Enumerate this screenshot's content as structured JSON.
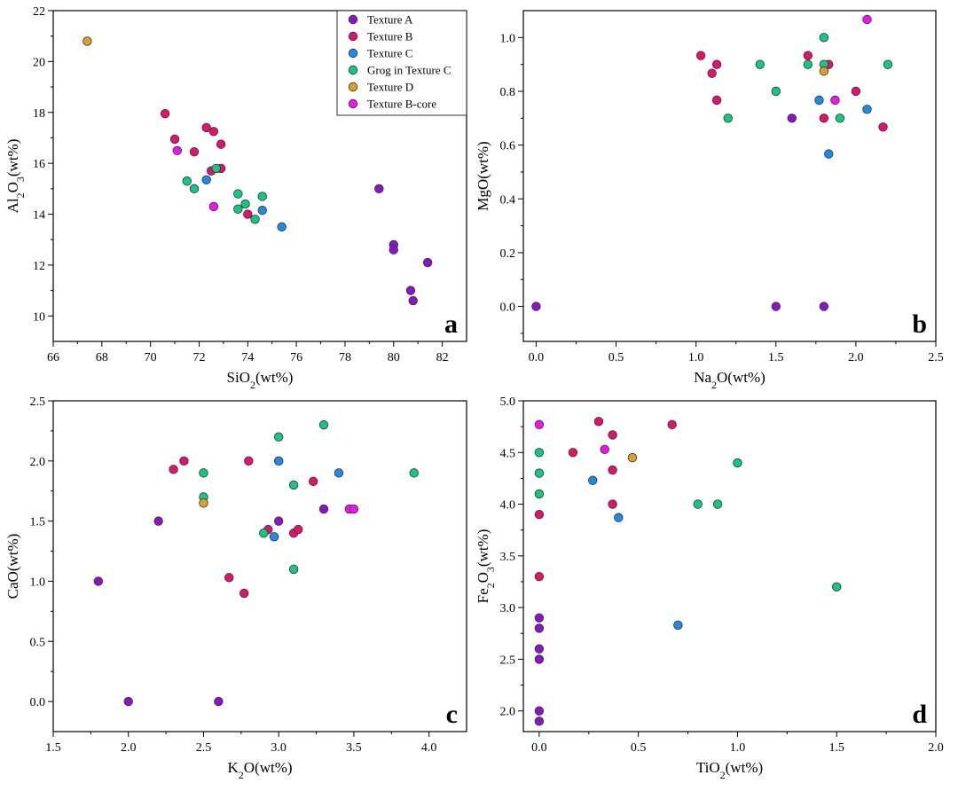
{
  "legend": [
    {
      "name": "Texture A",
      "color": "#8a14c8"
    },
    {
      "name": "Texture B",
      "color": "#e0146e"
    },
    {
      "name": "Texture C",
      "color": "#1e8ce6"
    },
    {
      "name": "Grog in Texture C",
      "color": "#14c882"
    },
    {
      "name": "Texture D",
      "color": "#dca028"
    },
    {
      "name": "Texture B-core",
      "color": "#f014f0"
    }
  ],
  "chart_data": [
    {
      "type": "scatter",
      "panel": "a",
      "xlabel_main": "SiO",
      "xlabel_sub": "2",
      "xlabel_tail": "(wt%)",
      "ylabel_main": "Al",
      "ylabel_sub": "2",
      "ylabel_mid": "O",
      "ylabel_sub2": "3",
      "ylabel_tail": "(wt%)",
      "xlim": [
        66,
        83
      ],
      "ylim": [
        9,
        22
      ],
      "xticks": [
        66,
        68,
        70,
        72,
        74,
        76,
        78,
        80,
        82
      ],
      "yticks": [
        10,
        12,
        14,
        16,
        18,
        20,
        22
      ],
      "xtick_labels": [
        "66",
        "68",
        "70",
        "72",
        "74",
        "76",
        "78",
        "80",
        "82"
      ],
      "ytick_labels": [
        "10",
        "12",
        "14",
        "16",
        "18",
        "20",
        "22"
      ],
      "show_legend": true,
      "series": [
        {
          "name": "Texture A",
          "points": [
            [
              79.4,
              15.0
            ],
            [
              80.0,
              12.8
            ],
            [
              80.0,
              12.6
            ],
            [
              81.4,
              12.1
            ],
            [
              80.7,
              11.0
            ],
            [
              80.8,
              10.6
            ]
          ]
        },
        {
          "name": "Texture B",
          "points": [
            [
              70.6,
              17.95
            ],
            [
              71.0,
              16.95
            ],
            [
              71.8,
              16.45
            ],
            [
              72.3,
              17.4
            ],
            [
              72.6,
              17.25
            ],
            [
              72.9,
              16.75
            ],
            [
              72.9,
              15.8
            ],
            [
              72.5,
              15.7
            ],
            [
              74.0,
              14.0
            ]
          ]
        },
        {
          "name": "Texture C",
          "points": [
            [
              72.3,
              15.35
            ],
            [
              74.6,
              14.15
            ],
            [
              75.4,
              13.5
            ]
          ]
        },
        {
          "name": "Grog in Texture C",
          "points": [
            [
              71.5,
              15.3
            ],
            [
              71.8,
              15.0
            ],
            [
              72.7,
              15.8
            ],
            [
              73.6,
              14.8
            ],
            [
              73.6,
              14.2
            ],
            [
              73.9,
              14.4
            ],
            [
              74.6,
              14.7
            ],
            [
              74.3,
              13.8
            ]
          ]
        },
        {
          "name": "Texture D",
          "points": [
            [
              67.4,
              20.8
            ]
          ]
        },
        {
          "name": "Texture B-core",
          "points": [
            [
              71.1,
              16.5
            ],
            [
              72.6,
              14.3
            ]
          ]
        }
      ]
    },
    {
      "type": "scatter",
      "panel": "b",
      "xlabel_main": "Na",
      "xlabel_sub": "2",
      "xlabel_tail": "O(wt%)",
      "ylabel_main": "MgO(wt%)",
      "ylabel_sub": "",
      "ylabel_mid": "",
      "ylabel_sub2": "",
      "ylabel_tail": "",
      "xlim": [
        -0.08,
        2.5
      ],
      "ylim": [
        -0.13,
        1.1
      ],
      "xticks": [
        0.0,
        0.5,
        1.0,
        1.5,
        2.0,
        2.5
      ],
      "yticks": [
        0.0,
        0.2,
        0.4,
        0.6,
        0.8,
        1.0
      ],
      "xtick_labels": [
        "0.0",
        "0.5",
        "1.0",
        "1.5",
        "2.0",
        "2.5"
      ],
      "ytick_labels": [
        "0.0",
        "0.2",
        "0.4",
        "0.6",
        "0.8",
        "1.0"
      ],
      "show_legend": false,
      "series": [
        {
          "name": "Texture A",
          "points": [
            [
              0.0,
              0.0
            ],
            [
              1.5,
              0.0
            ],
            [
              1.8,
              0.0
            ],
            [
              1.6,
              0.7
            ]
          ]
        },
        {
          "name": "Texture B",
          "points": [
            [
              1.03,
              0.933
            ],
            [
              1.1,
              0.867
            ],
            [
              1.13,
              0.9
            ],
            [
              1.13,
              0.767
            ],
            [
              1.7,
              0.933
            ],
            [
              1.83,
              0.9
            ],
            [
              1.8,
              0.7
            ],
            [
              2.0,
              0.8
            ],
            [
              2.17,
              0.667
            ]
          ]
        },
        {
          "name": "Texture C",
          "points": [
            [
              1.77,
              0.767
            ],
            [
              2.07,
              0.733
            ],
            [
              1.83,
              0.567
            ]
          ]
        },
        {
          "name": "Grog in Texture C",
          "points": [
            [
              1.2,
              0.7
            ],
            [
              1.4,
              0.9
            ],
            [
              1.5,
              0.8
            ],
            [
              1.7,
              0.9
            ],
            [
              1.8,
              1.0
            ],
            [
              1.8,
              0.9
            ],
            [
              1.9,
              0.7
            ],
            [
              2.2,
              0.9
            ]
          ]
        },
        {
          "name": "Texture D",
          "points": [
            [
              1.8,
              0.875
            ]
          ]
        },
        {
          "name": "Texture B-core",
          "points": [
            [
              1.87,
              0.767
            ],
            [
              2.07,
              1.067
            ]
          ]
        }
      ]
    },
    {
      "type": "scatter",
      "panel": "c",
      "xlabel_main": "K",
      "xlabel_sub": "2",
      "xlabel_tail": "O(wt%)",
      "ylabel_main": "CaO(wt%)",
      "ylabel_sub": "",
      "ylabel_mid": "",
      "ylabel_sub2": "",
      "ylabel_tail": "",
      "xlim": [
        1.5,
        4.25
      ],
      "ylim": [
        -0.25,
        2.5
      ],
      "xticks": [
        1.5,
        2.0,
        2.5,
        3.0,
        3.5,
        4.0
      ],
      "yticks": [
        0.0,
        0.5,
        1.0,
        1.5,
        2.0,
        2.5
      ],
      "xtick_labels": [
        "1.5",
        "2.0",
        "2.5",
        "3.0",
        "3.5",
        "4.0"
      ],
      "ytick_labels": [
        "0.0",
        "0.5",
        "1.0",
        "1.5",
        "2.0",
        "2.5"
      ],
      "show_legend": false,
      "series": [
        {
          "name": "Texture A",
          "points": [
            [
              1.8,
              1.0
            ],
            [
              2.0,
              0.0
            ],
            [
              2.2,
              1.5
            ],
            [
              2.6,
              0.0
            ],
            [
              3.0,
              1.5
            ],
            [
              3.3,
              1.6
            ]
          ]
        },
        {
          "name": "Texture B",
          "points": [
            [
              2.3,
              1.93
            ],
            [
              2.37,
              2.0
            ],
            [
              2.67,
              1.03
            ],
            [
              2.77,
              0.9
            ],
            [
              2.8,
              2.0
            ],
            [
              2.93,
              1.43
            ],
            [
              3.1,
              1.4
            ],
            [
              3.13,
              1.43
            ],
            [
              3.23,
              1.83
            ]
          ]
        },
        {
          "name": "Texture C",
          "points": [
            [
              2.97,
              1.37
            ],
            [
              3.0,
              2.0
            ],
            [
              3.4,
              1.9
            ]
          ]
        },
        {
          "name": "Grog in Texture C",
          "points": [
            [
              2.5,
              1.9
            ],
            [
              2.5,
              1.7
            ],
            [
              2.9,
              1.4
            ],
            [
              3.0,
              2.2
            ],
            [
              3.1,
              1.8
            ],
            [
              3.1,
              1.1
            ],
            [
              3.3,
              2.3
            ],
            [
              3.9,
              1.9
            ]
          ]
        },
        {
          "name": "Texture D",
          "points": [
            [
              2.5,
              1.65
            ]
          ]
        },
        {
          "name": "Texture B-core",
          "points": [
            [
              3.47,
              1.6
            ],
            [
              3.5,
              1.6
            ]
          ]
        }
      ]
    },
    {
      "type": "scatter",
      "panel": "d",
      "xlabel_main": "TiO",
      "xlabel_sub": "2",
      "xlabel_tail": "(wt%)",
      "ylabel_main": "Fe",
      "ylabel_sub": "2",
      "ylabel_mid": "O",
      "ylabel_sub2": "3",
      "ylabel_tail": "(wt%)",
      "xlim": [
        -0.08,
        2.0
      ],
      "ylim": [
        1.8,
        5.0
      ],
      "xticks": [
        0.0,
        0.5,
        1.0,
        1.5,
        2.0
      ],
      "yticks": [
        2.0,
        2.5,
        3.0,
        3.5,
        4.0,
        4.5,
        5.0
      ],
      "xtick_labels": [
        "0.0",
        "0.5",
        "1.0",
        "1.5",
        "2.0"
      ],
      "ytick_labels": [
        "2.0",
        "2.5",
        "3.0",
        "3.5",
        "4.0",
        "4.5",
        "5.0"
      ],
      "show_legend": false,
      "series": [
        {
          "name": "Texture A",
          "points": [
            [
              0.0,
              2.9
            ],
            [
              0.0,
              2.8
            ],
            [
              0.0,
              2.6
            ],
            [
              0.0,
              2.5
            ],
            [
              0.0,
              2.0
            ],
            [
              0.0,
              1.9
            ]
          ]
        },
        {
          "name": "Texture B",
          "points": [
            [
              0.0,
              3.9
            ],
            [
              0.0,
              3.3
            ],
            [
              0.17,
              4.5
            ],
            [
              0.3,
              4.8
            ],
            [
              0.37,
              4.67
            ],
            [
              0.37,
              4.33
            ],
            [
              0.37,
              4.0
            ],
            [
              0.67,
              4.77
            ]
          ]
        },
        {
          "name": "Texture C",
          "points": [
            [
              0.27,
              4.23
            ],
            [
              0.4,
              3.87
            ],
            [
              0.7,
              2.83
            ]
          ]
        },
        {
          "name": "Grog in Texture C",
          "points": [
            [
              0.0,
              4.5
            ],
            [
              0.0,
              4.3
            ],
            [
              0.0,
              4.1
            ],
            [
              0.8,
              4.0
            ],
            [
              0.9,
              4.0
            ],
            [
              1.0,
              4.4
            ],
            [
              1.5,
              3.2
            ]
          ]
        },
        {
          "name": "Texture D",
          "points": [
            [
              0.47,
              4.45
            ]
          ]
        },
        {
          "name": "Texture B-core",
          "points": [
            [
              0.0,
              4.77
            ],
            [
              0.33,
              4.53
            ]
          ]
        }
      ]
    }
  ]
}
